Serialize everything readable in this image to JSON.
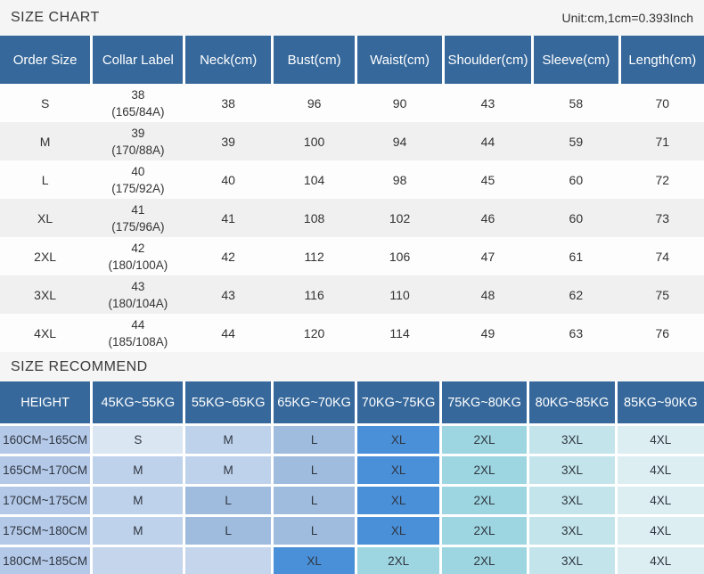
{
  "page": {
    "title": "SIZE CHART",
    "unit_note": "Unit:cm,1cm=0.393Inch",
    "recommend_title": "SIZE RECOMMEND"
  },
  "colors": {
    "header_blue": "#36689b",
    "band_gray": "#f5f5f5",
    "row_alt_gray": "#f0f0f0",
    "height_column": "#b4c9e8",
    "size_cells": {
      "s": "#dbe6f3",
      "m": "#bed2eb",
      "l": "#9fbcde",
      "xl": "#4a90d9",
      "2xl": "#9dd6e1",
      "3xl": "#c3e4ea",
      "4xl": "#ddeef3",
      "empty": "#c4d5ec"
    }
  },
  "size_table": {
    "headers": [
      "Order Size",
      "Collar Label",
      "Neck(cm)",
      "Bust(cm)",
      "Waist(cm)",
      "Shoulder(cm)",
      "Sleeve(cm)",
      "Length(cm)"
    ],
    "rows": [
      {
        "size": "S",
        "collar_size": "38",
        "collar_spec": "(165/84A)",
        "neck": "38",
        "bust": "96",
        "waist": "90",
        "shoulder": "43",
        "sleeve": "58",
        "length": "70"
      },
      {
        "size": "M",
        "collar_size": "39",
        "collar_spec": "(170/88A)",
        "neck": "39",
        "bust": "100",
        "waist": "94",
        "shoulder": "44",
        "sleeve": "59",
        "length": "71"
      },
      {
        "size": "L",
        "collar_size": "40",
        "collar_spec": "(175/92A)",
        "neck": "40",
        "bust": "104",
        "waist": "98",
        "shoulder": "45",
        "sleeve": "60",
        "length": "72"
      },
      {
        "size": "XL",
        "collar_size": "41",
        "collar_spec": "(175/96A)",
        "neck": "41",
        "bust": "108",
        "waist": "102",
        "shoulder": "46",
        "sleeve": "60",
        "length": "73"
      },
      {
        "size": "2XL",
        "collar_size": "42",
        "collar_spec": "(180/100A)",
        "neck": "42",
        "bust": "112",
        "waist": "106",
        "shoulder": "47",
        "sleeve": "61",
        "length": "74"
      },
      {
        "size": "3XL",
        "collar_size": "43",
        "collar_spec": "(180/104A)",
        "neck": "43",
        "bust": "116",
        "waist": "110",
        "shoulder": "48",
        "sleeve": "62",
        "length": "75"
      },
      {
        "size": "4XL",
        "collar_size": "44",
        "collar_spec": "(185/108A)",
        "neck": "44",
        "bust": "120",
        "waist": "114",
        "shoulder": "49",
        "sleeve": "63",
        "length": "76"
      }
    ]
  },
  "recommend_table": {
    "headers": [
      "HEIGHT",
      "45KG~55KG",
      "55KG~65KG",
      "65KG~70KG",
      "70KG~75KG",
      "75KG~80KG",
      "80KG~85KG",
      "85KG~90KG"
    ],
    "rows": [
      {
        "height": "160CM~165CM",
        "cells": [
          "S",
          "M",
          "L",
          "XL",
          "2XL",
          "3XL",
          "4XL"
        ]
      },
      {
        "height": "165CM~170CM",
        "cells": [
          "M",
          "M",
          "L",
          "XL",
          "2XL",
          "3XL",
          "4XL"
        ]
      },
      {
        "height": "170CM~175CM",
        "cells": [
          "M",
          "L",
          "L",
          "XL",
          "2XL",
          "3XL",
          "4XL"
        ]
      },
      {
        "height": "175CM~180CM",
        "cells": [
          "M",
          "L",
          "L",
          "XL",
          "2XL",
          "3XL",
          "4XL"
        ]
      },
      {
        "height": "180CM~185CM",
        "cells": [
          "",
          "",
          "XL",
          "2XL",
          "2XL",
          "3XL",
          "4XL"
        ]
      }
    ]
  }
}
